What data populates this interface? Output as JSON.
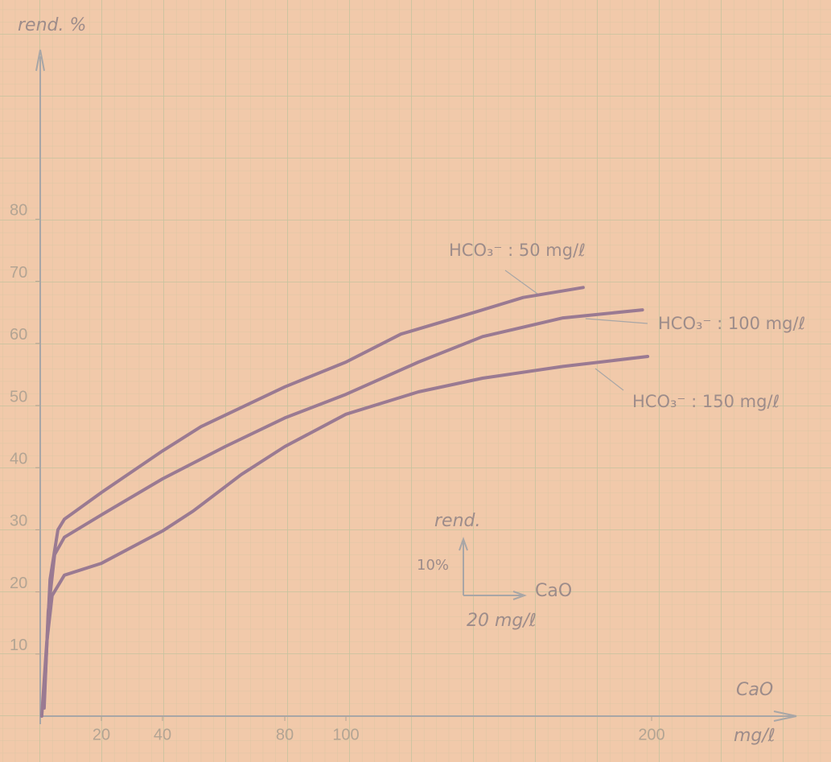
{
  "chart_data": {
    "type": "line",
    "y_label": "rend. %",
    "x_label": "CaO",
    "x_unit": "mg/ℓ",
    "annotations": [
      "rend.",
      "10%",
      "CaO",
      "20 mg/ℓ"
    ],
    "xlim": [
      0,
      247
    ],
    "ylim": [
      0,
      108
    ],
    "xticks": [
      20,
      40,
      80,
      100,
      200
    ],
    "yticks": [
      10,
      20,
      30,
      40,
      50,
      60,
      70,
      80
    ],
    "series": [
      {
        "name": "HCO₃⁻ : 50 mg/ℓ",
        "color": "#9a7a92",
        "x": [
          1.3,
          3.2,
          5.8,
          7.9,
          20,
          40,
          52.6,
          80,
          100,
          118,
          142,
          158,
          177.6
        ],
        "values": [
          2.6,
          22,
          30,
          31.7,
          36,
          42.7,
          46.6,
          53,
          57,
          61.5,
          65,
          67.4,
          69
        ]
      },
      {
        "name": "HCO₃⁻ : 100 mg/ℓ",
        "color": "#9a7a92",
        "x": [
          1.3,
          2.6,
          4.7,
          7.9,
          20,
          40,
          60.5,
          80,
          100,
          123.7,
          144.7,
          171,
          197
        ],
        "values": [
          1.3,
          16.8,
          26,
          28.8,
          32.4,
          38.2,
          43.4,
          48,
          51.8,
          57,
          61.1,
          64.1,
          65.4
        ]
      },
      {
        "name": "HCO₃⁻ : 150 mg/ℓ",
        "color": "#9a7a92",
        "x": [
          0.5,
          2.1,
          3.9,
          7.9,
          20,
          40,
          50,
          65.8,
          80,
          100,
          123.7,
          144.7,
          171,
          198.7
        ],
        "values": [
          0,
          11.7,
          19.4,
          22.7,
          24.6,
          29.8,
          33,
          38.9,
          43.4,
          48.6,
          52.2,
          54.4,
          56.3,
          57.9
        ]
      }
    ]
  }
}
